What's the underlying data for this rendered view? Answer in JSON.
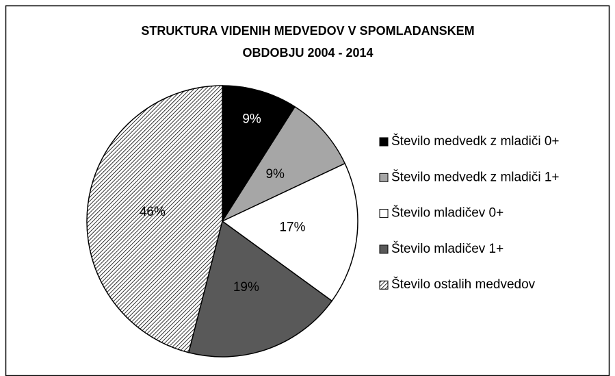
{
  "chart_data": {
    "type": "pie",
    "title": [
      "STRUKTURA VIDENIH MEDVEDOV V SPOMLADANSKEM",
      "OBDOBJU 2004 - 2014"
    ],
    "categories": [
      "Število medvedk z mladiči 0+",
      "Število medvedk z mladiči 1+",
      "Število mladičev 0+",
      "Število mladičev 1+",
      "Število ostalih medvedov"
    ],
    "values": [
      9,
      9,
      17,
      19,
      46
    ],
    "value_labels": [
      "9%",
      "9%",
      "17%",
      "19%",
      "46%"
    ],
    "colors": [
      "#000000",
      "#a6a6a6",
      "#ffffff",
      "#595959",
      "#ffffff"
    ],
    "hatch": [
      false,
      false,
      false,
      false,
      true
    ],
    "legend": "right"
  }
}
